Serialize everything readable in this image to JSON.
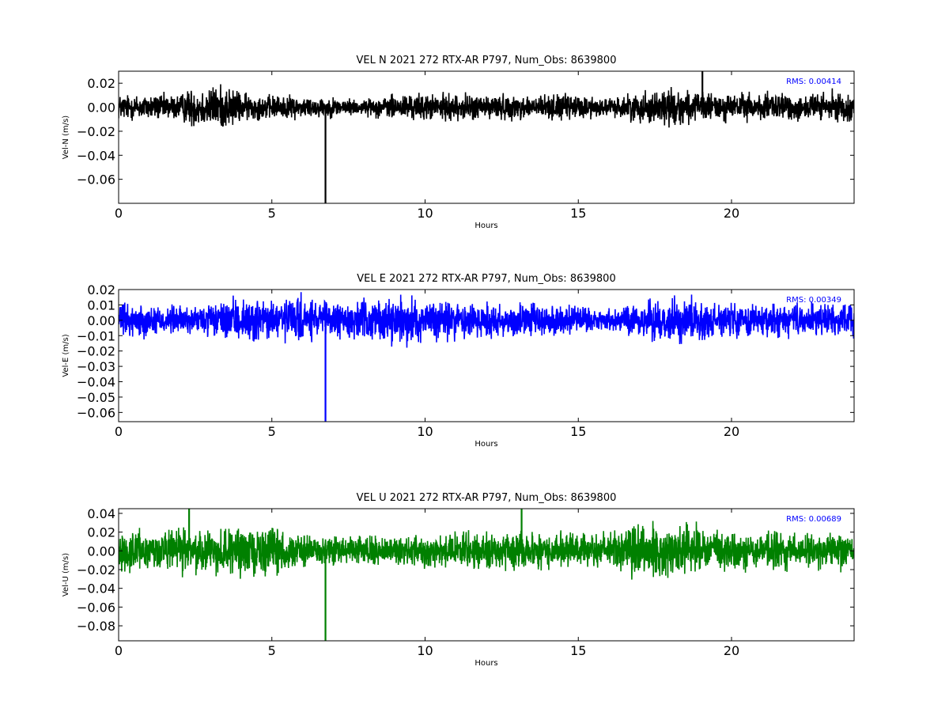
{
  "chart_data": [
    {
      "type": "line",
      "title": "VEL N 2021 272 RTX-AR  P797, Num_Obs: 8639800",
      "xlabel": "Hours",
      "ylabel": "Vel-N (m/s)",
      "xlim": [
        0,
        24
      ],
      "ylim": [
        -0.08,
        0.03
      ],
      "xticks": [
        0,
        5,
        10,
        15,
        20
      ],
      "yticks": [
        0.02,
        0.0,
        -0.02,
        -0.04,
        -0.06
      ],
      "ytick_labels": [
        "0.02",
        "0.00",
        "−0.02",
        "−0.04",
        "−0.06"
      ],
      "color": "#000000",
      "rms_label": "RMS:  0.00414",
      "grid": false,
      "series": [
        {
          "noise_envelope": [
            {
              "x": 0,
              "amp": 0.012
            },
            {
              "x": 2,
              "amp": 0.012
            },
            {
              "x": 2.4,
              "amp": 0.018
            },
            {
              "x": 3.5,
              "amp": 0.02
            },
            {
              "x": 4.2,
              "amp": 0.012
            },
            {
              "x": 7,
              "amp": 0.009
            },
            {
              "x": 8,
              "amp": 0.007
            },
            {
              "x": 9,
              "amp": 0.012
            },
            {
              "x": 12,
              "amp": 0.012
            },
            {
              "x": 13,
              "amp": 0.011
            },
            {
              "x": 15,
              "amp": 0.012
            },
            {
              "x": 16,
              "amp": 0.008
            },
            {
              "x": 17,
              "amp": 0.014
            },
            {
              "x": 18,
              "amp": 0.018
            },
            {
              "x": 19,
              "amp": 0.013
            },
            {
              "x": 24,
              "amp": 0.013
            }
          ],
          "spikes": [
            {
              "x": 6.75,
              "y": -0.08
            },
            {
              "x": 19.05,
              "y": 0.03
            }
          ]
        }
      ]
    },
    {
      "type": "line",
      "title": "VEL E 2021 272 RTX-AR  P797, Num_Obs: 8639800",
      "xlabel": "Hours",
      "ylabel": "Vel-E (m/s)",
      "xlim": [
        0,
        24
      ],
      "ylim": [
        -0.066,
        0.02
      ],
      "xticks": [
        0,
        5,
        10,
        15,
        20
      ],
      "yticks": [
        0.02,
        0.01,
        0.0,
        -0.01,
        -0.02,
        -0.03,
        -0.04,
        -0.05,
        -0.06
      ],
      "ytick_labels": [
        "0.02",
        "0.01",
        "0.00",
        "−0.01",
        "−0.02",
        "−0.03",
        "−0.04",
        "−0.05",
        "−0.06"
      ],
      "color": "#0000ff",
      "rms_label": "RMS:  0.00349",
      "grid": false,
      "series": [
        {
          "noise_envelope": [
            {
              "x": 0,
              "amp": 0.012
            },
            {
              "x": 2.5,
              "amp": 0.01
            },
            {
              "x": 4,
              "amp": 0.015
            },
            {
              "x": 6,
              "amp": 0.016
            },
            {
              "x": 7,
              "amp": 0.012
            },
            {
              "x": 9,
              "amp": 0.016
            },
            {
              "x": 12,
              "amp": 0.014
            },
            {
              "x": 14,
              "amp": 0.012
            },
            {
              "x": 16,
              "amp": 0.008
            },
            {
              "x": 18,
              "amp": 0.016
            },
            {
              "x": 20,
              "amp": 0.012
            },
            {
              "x": 22,
              "amp": 0.011
            },
            {
              "x": 24,
              "amp": 0.012
            }
          ],
          "spikes": [
            {
              "x": 6.75,
              "y": -0.066
            }
          ]
        }
      ]
    },
    {
      "type": "line",
      "title": "VEL U 2021 272 RTX-AR  P797, Num_Obs: 8639800",
      "xlabel": "Hours",
      "ylabel": "Vel-U (m/s)",
      "xlim": [
        0,
        24
      ],
      "ylim": [
        -0.096,
        0.045
      ],
      "xticks": [
        0,
        5,
        10,
        15,
        20
      ],
      "yticks": [
        0.04,
        0.02,
        0.0,
        -0.02,
        -0.04,
        -0.06,
        -0.08
      ],
      "ytick_labels": [
        "0.04",
        "0.02",
        "0.00",
        "−0.02",
        "−0.04",
        "−0.06",
        "−0.08"
      ],
      "color": "#008000",
      "rms_label": "RMS:  0.00689",
      "grid": false,
      "series": [
        {
          "noise_envelope": [
            {
              "x": 0,
              "amp": 0.022
            },
            {
              "x": 2,
              "amp": 0.025
            },
            {
              "x": 3.5,
              "amp": 0.026
            },
            {
              "x": 5,
              "amp": 0.027
            },
            {
              "x": 6.5,
              "amp": 0.016
            },
            {
              "x": 9,
              "amp": 0.016
            },
            {
              "x": 12,
              "amp": 0.022
            },
            {
              "x": 13.5,
              "amp": 0.02
            },
            {
              "x": 15.5,
              "amp": 0.02
            },
            {
              "x": 16.8,
              "amp": 0.03
            },
            {
              "x": 19,
              "amp": 0.028
            },
            {
              "x": 21,
              "amp": 0.022
            },
            {
              "x": 24,
              "amp": 0.02
            }
          ],
          "spikes": [
            {
              "x": 6.75,
              "y": -0.096
            },
            {
              "x": 2.3,
              "y": 0.045
            },
            {
              "x": 13.15,
              "y": 0.045
            }
          ]
        }
      ]
    }
  ]
}
